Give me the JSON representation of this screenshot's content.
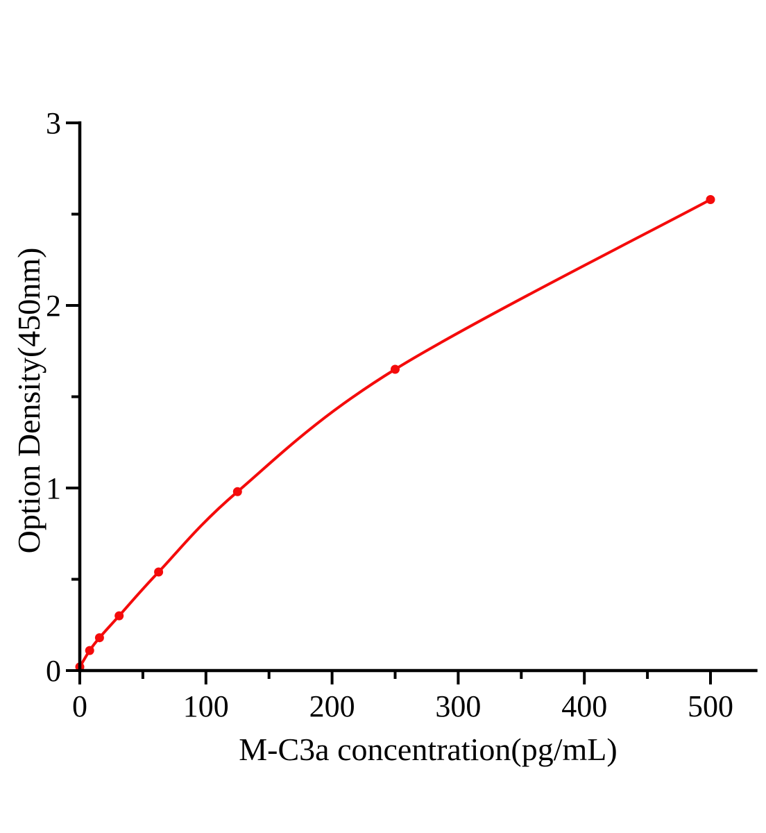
{
  "figure": {
    "background_color": "#ffffff",
    "text_color": "#000000"
  },
  "chart_data": {
    "type": "scatter",
    "title": "",
    "xlabel": "M-C3a concentration(pg/mL)",
    "ylabel": "Option Density(450nm)",
    "x": [
      0,
      7.8,
      15.6,
      31.2,
      62.5,
      125,
      250,
      500
    ],
    "y": [
      0.02,
      0.11,
      0.18,
      0.3,
      0.54,
      0.98,
      1.65,
      2.58
    ],
    "curve_style": "smooth",
    "xlim": [
      0,
      536
    ],
    "ylim": [
      0,
      3
    ],
    "x_major_ticks": [
      0,
      100,
      200,
      300,
      400,
      500
    ],
    "x_minor_ticks": [
      50,
      150,
      250,
      350,
      450
    ],
    "y_major_ticks": [
      0,
      1,
      2,
      3
    ],
    "y_minor_ticks": [
      0.5,
      1.5,
      2.5
    ],
    "x_tick_labels": [
      "0",
      "100",
      "200",
      "300",
      "400",
      "500"
    ],
    "y_tick_labels": [
      "0",
      "1",
      "2",
      "3"
    ],
    "grid": false,
    "legend": null,
    "line_color": "#f40b0b",
    "marker_color": "#f40b0b",
    "marker_radius": 6.5,
    "line_width": 4,
    "axis_color": "#000000"
  }
}
